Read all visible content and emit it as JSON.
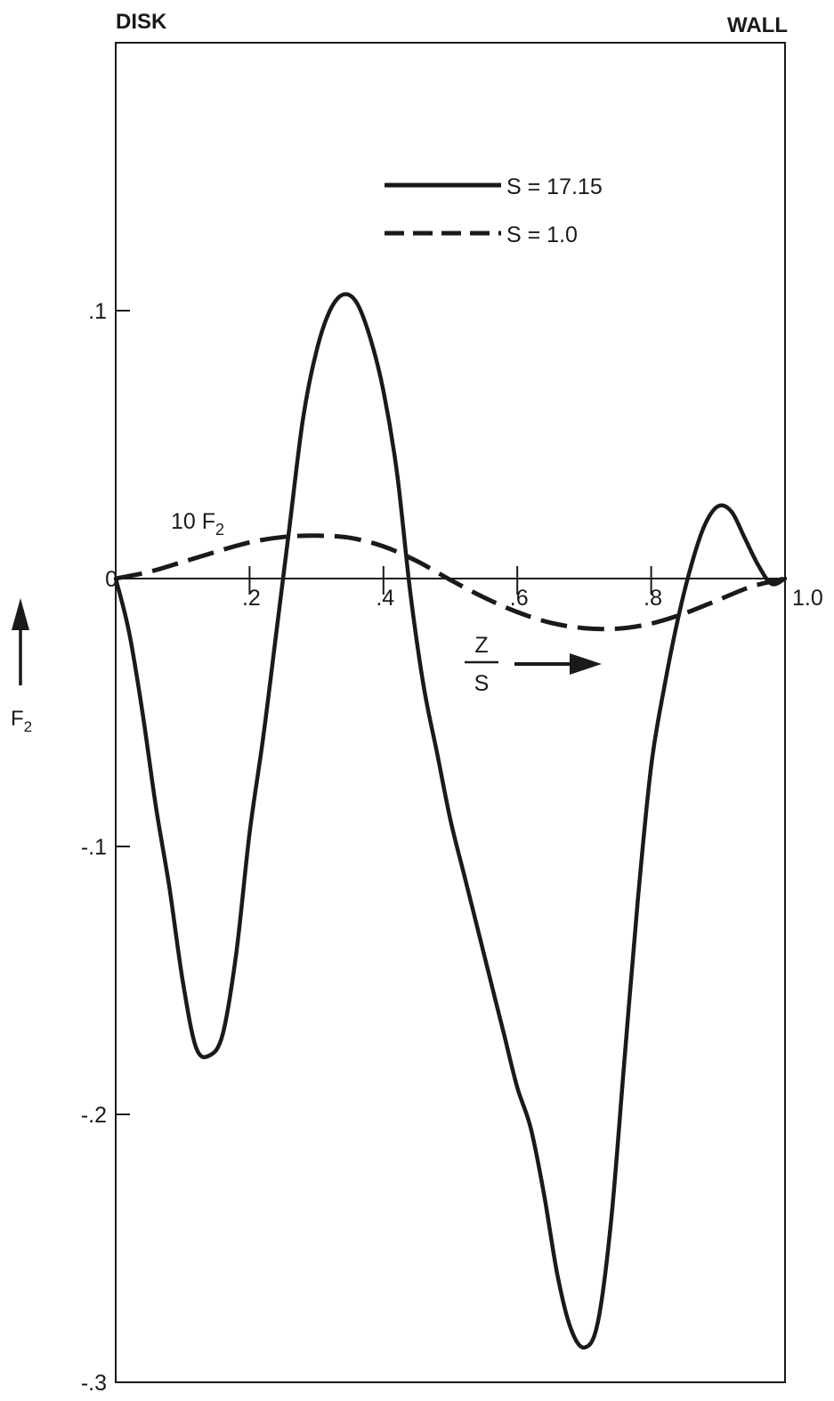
{
  "chart_data": {
    "type": "line",
    "corner_labels": {
      "left": "DISK",
      "right": "WALL"
    },
    "xlabel": {
      "numerator": "Z",
      "denominator": "S"
    },
    "ylabel": {
      "main": "F",
      "sub": "2"
    },
    "xlim": [
      0,
      1.0
    ],
    "ylim": [
      -0.3,
      0.1
    ],
    "x_ticks": [
      {
        "value": 0,
        "label": "0"
      },
      {
        "value": 0.2,
        "label": ".2"
      },
      {
        "value": 0.4,
        "label": ".4"
      },
      {
        "value": 0.6,
        "label": ".6"
      },
      {
        "value": 0.8,
        "label": ".8"
      },
      {
        "value": 1.0,
        "label": "1.0"
      }
    ],
    "y_ticks": [
      {
        "value": 0.1,
        "label": ".1"
      },
      {
        "value": -0.1,
        "label": "-.1"
      },
      {
        "value": -0.2,
        "label": "-.2"
      },
      {
        "value": -0.3,
        "label": "-.3"
      }
    ],
    "grid": false,
    "legend_position": "top-center",
    "series": [
      {
        "name": "S = 17.15",
        "style": "solid",
        "color": "#1a1a1a",
        "x": [
          0,
          0.02,
          0.04,
          0.06,
          0.08,
          0.1,
          0.12,
          0.14,
          0.16,
          0.18,
          0.2,
          0.22,
          0.24,
          0.26,
          0.28,
          0.3,
          0.32,
          0.34,
          0.36,
          0.38,
          0.4,
          0.42,
          0.44,
          0.46,
          0.48,
          0.5,
          0.52,
          0.54,
          0.56,
          0.58,
          0.6,
          0.62,
          0.64,
          0.66,
          0.68,
          0.7,
          0.72,
          0.74,
          0.76,
          0.78,
          0.8,
          0.82,
          0.84,
          0.86,
          0.88,
          0.9,
          0.92,
          0.94,
          0.96,
          0.98,
          1.0
        ],
        "y": [
          0,
          -0.02,
          -0.05,
          -0.085,
          -0.115,
          -0.15,
          -0.175,
          -0.178,
          -0.17,
          -0.14,
          -0.095,
          -0.06,
          -0.02,
          0.02,
          0.06,
          0.085,
          0.1,
          0.106,
          0.103,
          0.09,
          0.07,
          0.04,
          -0.005,
          -0.04,
          -0.065,
          -0.09,
          -0.11,
          -0.13,
          -0.15,
          -0.17,
          -0.19,
          -0.205,
          -0.23,
          -0.26,
          -0.28,
          -0.287,
          -0.278,
          -0.24,
          -0.18,
          -0.12,
          -0.07,
          -0.04,
          -0.015,
          0.005,
          0.02,
          0.027,
          0.025,
          0.015,
          0.005,
          -0.002,
          0
        ]
      },
      {
        "name": "S = 1.0",
        "annotation": {
          "text": "10 F",
          "sub": "2"
        },
        "style": "dashed",
        "color": "#1a1a1a",
        "x": [
          0,
          0.05,
          0.1,
          0.15,
          0.2,
          0.25,
          0.3,
          0.35,
          0.4,
          0.45,
          0.5,
          0.55,
          0.6,
          0.65,
          0.7,
          0.75,
          0.8,
          0.85,
          0.9,
          0.95,
          1.0
        ],
        "y": [
          0,
          0.0025,
          0.0062,
          0.01,
          0.0135,
          0.0155,
          0.016,
          0.0152,
          0.012,
          0.0065,
          -0.0005,
          -0.007,
          -0.0125,
          -0.0165,
          -0.0185,
          -0.0187,
          -0.0168,
          -0.013,
          -0.008,
          -0.003,
          0
        ]
      }
    ]
  }
}
